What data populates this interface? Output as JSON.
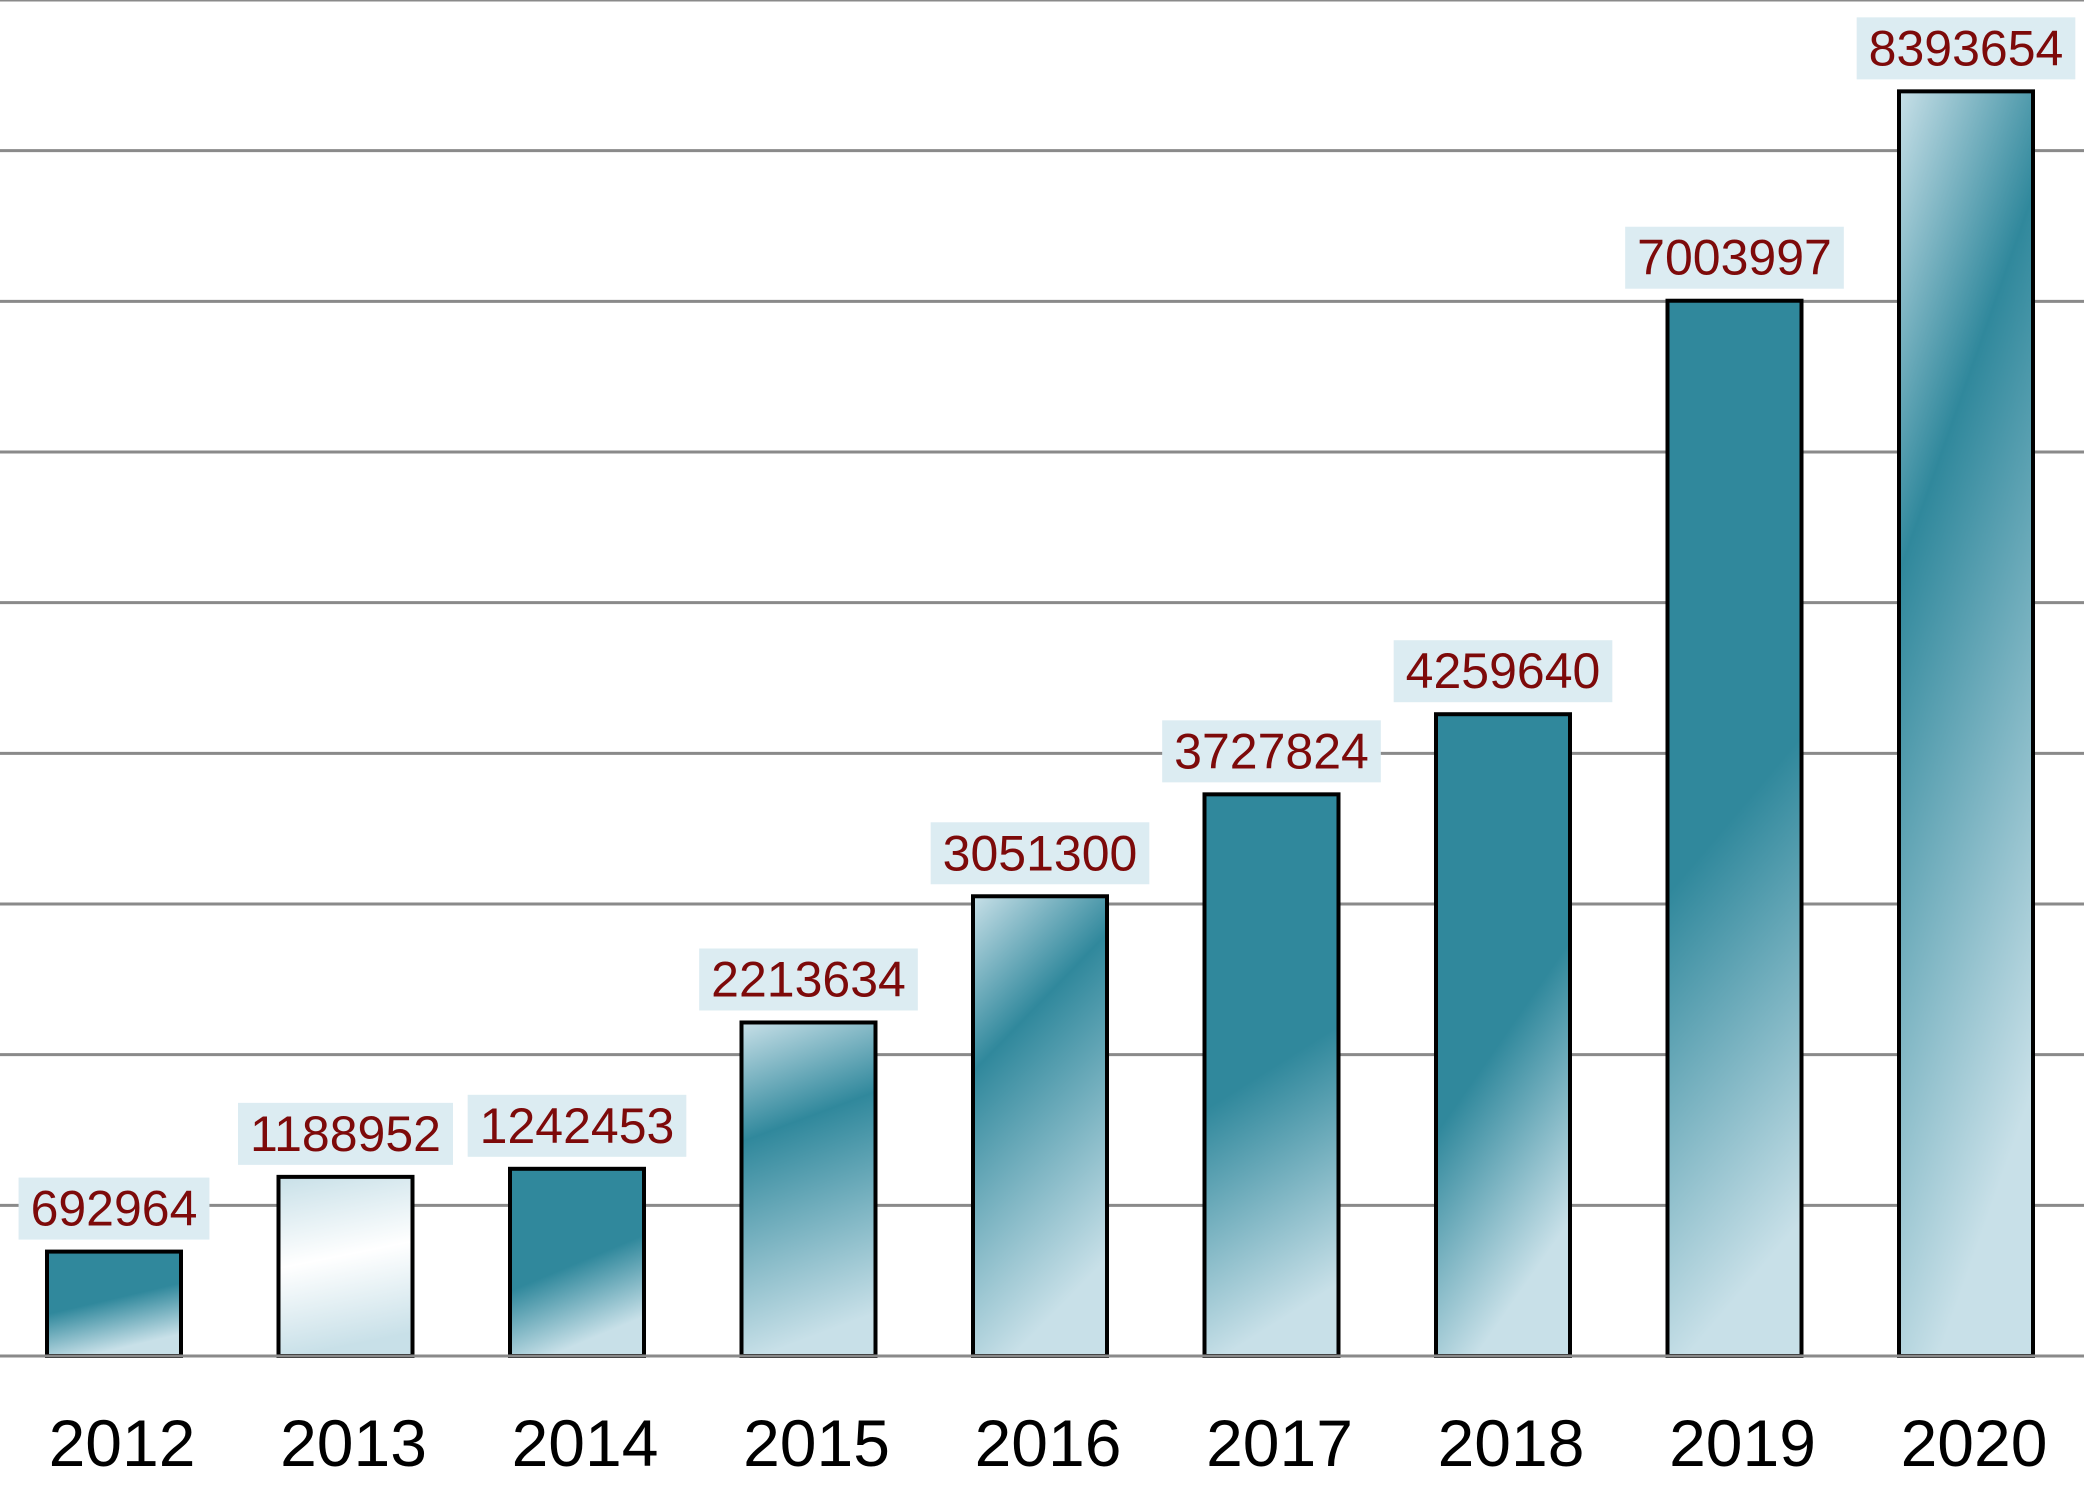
{
  "chart_data": {
    "type": "bar",
    "title": "",
    "xlabel": "",
    "ylabel": "",
    "categories": [
      "2012",
      "2013",
      "2014",
      "2015",
      "2016",
      "2017",
      "2018",
      "2019",
      "2020"
    ],
    "values": [
      692964,
      1188952,
      1242453,
      2213634,
      3051300,
      3727824,
      4259640,
      7003997,
      8393654
    ],
    "data_labels": [
      "692964",
      "1188952",
      "1242453",
      "2213634",
      "3051300",
      "3727824",
      "4259640",
      "7003997",
      "8393654"
    ],
    "ylim": [
      0,
      9000000
    ],
    "y_grid_step": 1000000,
    "grid": true,
    "y_tick_labels_visible": false,
    "legend": "none",
    "colors": {
      "bar_base": "#30889c",
      "bar_light": "#c8e0e8",
      "bar_outline": "#000000",
      "gridline": "#8a8a8a",
      "data_label_text": "#7d0a0a",
      "data_label_background": "#dcecf2",
      "tick_label_text": "#000000"
    }
  }
}
